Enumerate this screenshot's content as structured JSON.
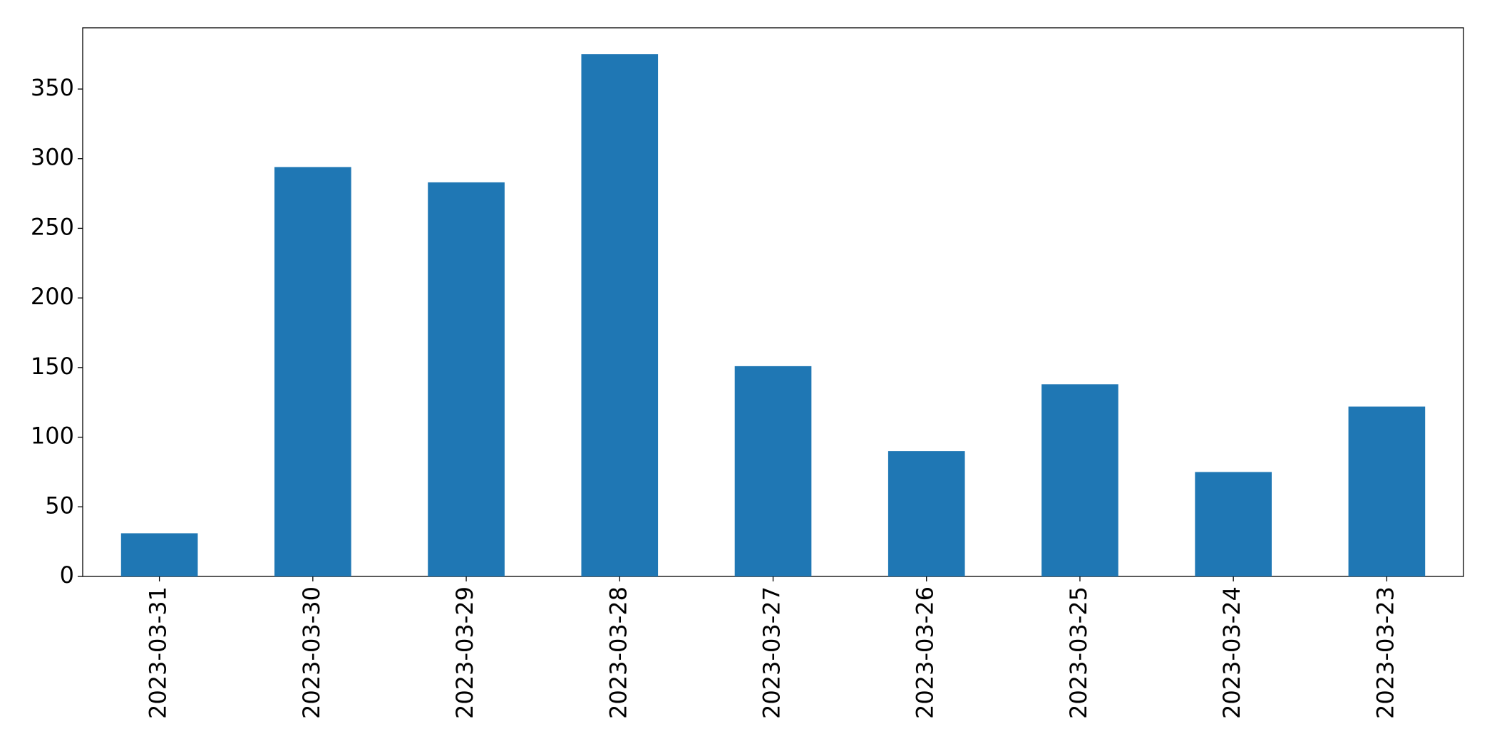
{
  "chart_data": {
    "type": "bar",
    "categories": [
      "2023-03-31",
      "2023-03-30",
      "2023-03-29",
      "2023-03-28",
      "2023-03-27",
      "2023-03-26",
      "2023-03-25",
      "2023-03-24",
      "2023-03-23"
    ],
    "values": [
      31,
      294,
      283,
      375,
      151,
      90,
      138,
      75,
      122
    ],
    "color": "#1f77b4",
    "ylim": [
      0,
      394
    ],
    "yticks": [
      0,
      50,
      100,
      150,
      200,
      250,
      300,
      350
    ],
    "grid": false
  }
}
